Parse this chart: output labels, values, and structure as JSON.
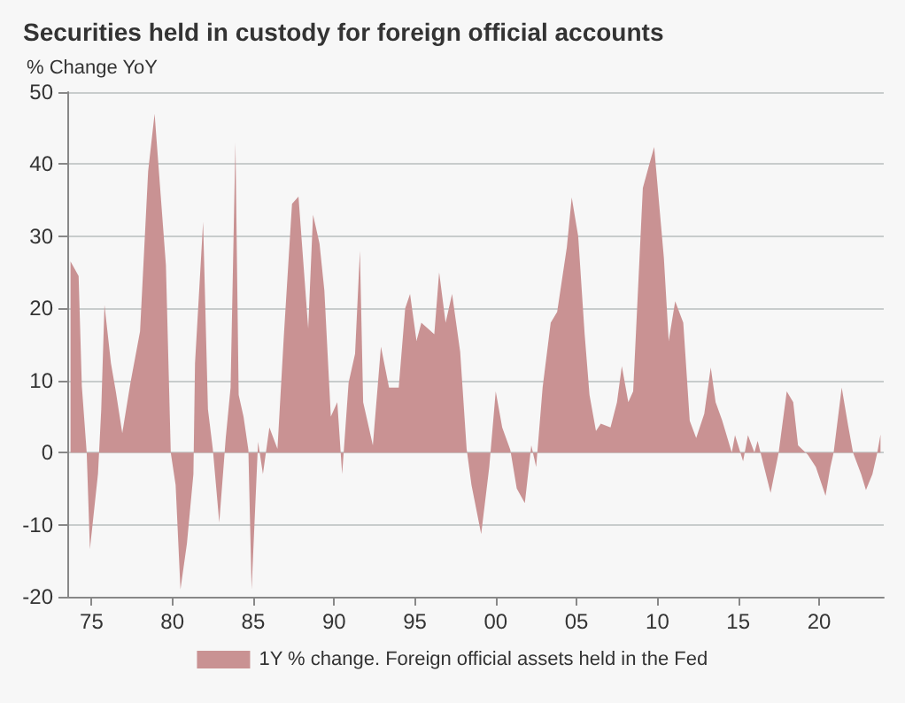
{
  "chart_data": {
    "type": "area",
    "title": "Securities held in custody for foreign official accounts",
    "subtitle": "% Change YoY",
    "x": [
      1973.7,
      1974.2,
      1974.4,
      1974.7,
      1974.9,
      1975.4,
      1975.6,
      1975.8,
      1976.2,
      1976.5,
      1976.9,
      1977.4,
      1978.0,
      1978.5,
      1978.9,
      1979.3,
      1979.6,
      1979.9,
      1980.2,
      1980.5,
      1980.9,
      1981.3,
      1981.4,
      1981.9,
      1982.2,
      1982.5,
      1982.9,
      1983.3,
      1983.6,
      1983.9,
      1984.1,
      1984.4,
      1984.7,
      1984.9,
      1985.3,
      1985.6,
      1986.0,
      1986.5,
      1986.9,
      1987.4,
      1987.8,
      1988.4,
      1988.7,
      1989.1,
      1989.4,
      1989.8,
      1990.2,
      1990.5,
      1990.9,
      1991.3,
      1991.6,
      1991.8,
      1992.4,
      1992.9,
      1993.4,
      1994.0,
      1994.4,
      1994.7,
      1995.1,
      1995.4,
      1996.2,
      1996.5,
      1996.9,
      1997.3,
      1997.8,
      1998.2,
      1998.5,
      1999.1,
      1999.6,
      2000.0,
      2000.4,
      2000.9,
      2001.3,
      2001.8,
      2002.2,
      2002.5,
      2002.9,
      2003.4,
      2003.8,
      2004.4,
      2004.7,
      2005.1,
      2005.5,
      2005.8,
      2006.2,
      2006.5,
      2007.1,
      2007.5,
      2007.8,
      2008.2,
      2008.5,
      2009.1,
      2009.5,
      2009.8,
      2010.4,
      2010.7,
      2011.1,
      2011.6,
      2012.0,
      2012.4,
      2012.9,
      2013.3,
      2013.6,
      2014.0,
      2014.6,
      2014.8,
      2015.3,
      2015.6,
      2016.0,
      2016.2,
      2016.6,
      2017.0,
      2017.5,
      2018.0,
      2018.4,
      2018.7,
      2019.3,
      2019.8,
      2020.4,
      2020.7,
      2020.9,
      2021.4,
      2021.8,
      2022.1,
      2022.6,
      2022.9,
      2023.3,
      2023.6,
      2023.8
    ],
    "series": [
      {
        "name": "1Y % change. Foreign official assets held in the Fed",
        "color": "#c99293",
        "values": [
          26.5,
          24.5,
          9.2,
          0,
          -13.4,
          -2.9,
          6,
          20.5,
          12.4,
          8.5,
          2.7,
          9.6,
          16.8,
          39,
          47,
          35,
          26,
          0,
          -4.5,
          -19,
          -12.6,
          -3,
          12.4,
          32,
          6,
          0.5,
          -9.7,
          2,
          9,
          43,
          8,
          5,
          0.4,
          -19,
          1.5,
          -3,
          3.5,
          0.5,
          16.4,
          34.5,
          35.5,
          17.2,
          33,
          29,
          22.5,
          5,
          7,
          -3,
          9.7,
          13.7,
          28,
          7,
          1,
          14.7,
          9,
          9,
          20,
          22,
          15.5,
          18,
          16.4,
          25,
          18,
          22,
          14,
          0.5,
          -4.5,
          -11.3,
          -2,
          8.5,
          3.5,
          0.4,
          -5,
          -7,
          1,
          -2,
          9,
          18,
          19.5,
          28.5,
          35.4,
          30,
          16.4,
          8,
          3,
          4,
          3.5,
          7,
          12,
          7,
          8.5,
          36.7,
          40,
          42.4,
          27,
          15.5,
          21,
          18,
          4.4,
          2,
          5.4,
          11.8,
          7,
          4.5,
          0,
          2.4,
          -1.2,
          2.4,
          0,
          1.6,
          -2,
          -5.6,
          0,
          8.5,
          7,
          1,
          -0.3,
          -2,
          -6,
          -2,
          0,
          9,
          3.7,
          0,
          -3,
          -5.2,
          -3,
          0,
          2.5
        ]
      }
    ],
    "xlim": [
      1973.5,
      2024
    ],
    "xticks": [
      {
        "value": 1975,
        "label": "75"
      },
      {
        "value": 1980,
        "label": "80"
      },
      {
        "value": 1985,
        "label": "85"
      },
      {
        "value": 1990,
        "label": "90"
      },
      {
        "value": 1995,
        "label": "95"
      },
      {
        "value": 2000,
        "label": "00"
      },
      {
        "value": 2005,
        "label": "05"
      },
      {
        "value": 2010,
        "label": "10"
      },
      {
        "value": 2015,
        "label": "15"
      },
      {
        "value": 2020,
        "label": "20"
      }
    ],
    "ylim": [
      -20,
      50
    ],
    "yticks": [
      -20,
      -10,
      0,
      10,
      20,
      30,
      40,
      50
    ],
    "grid": "y",
    "legend": "bottom",
    "marker": "none"
  }
}
